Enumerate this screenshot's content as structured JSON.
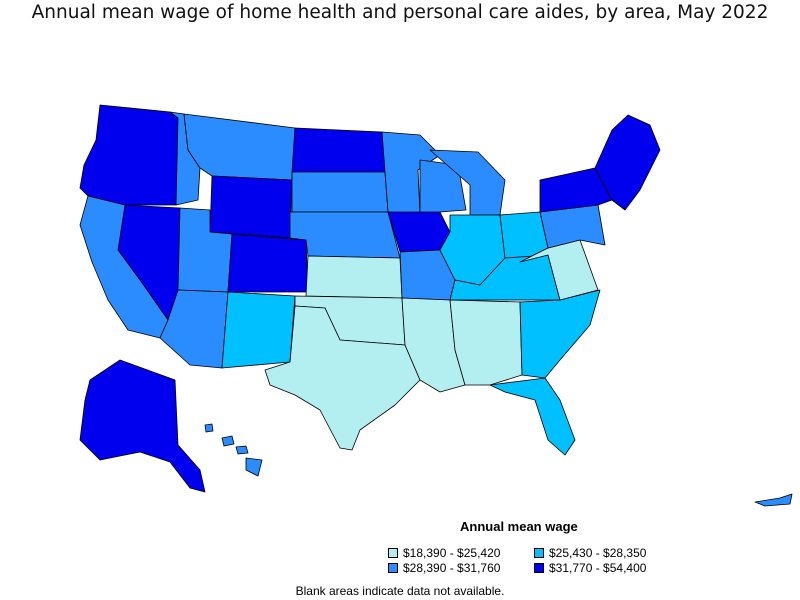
{
  "title": "Annual mean wage of home health and personal care aides, by area, May 2022",
  "legend": {
    "title": "Annual mean wage",
    "items": [
      {
        "label": "$18,390 - $25,420",
        "color": "#b3eef0"
      },
      {
        "label": "$25,430 - $28,350",
        "color": "#00c0ff"
      },
      {
        "label": "$28,390 - $31,760",
        "color": "#2a8cff"
      },
      {
        "label": "$31,770 - $54,400",
        "color": "#0000ee"
      }
    ]
  },
  "footnote": "Blank areas indicate data not available.",
  "colors": {
    "tier1": "#b3eef0",
    "tier2": "#00c0ff",
    "tier3": "#2a8cff",
    "tier4": "#0000ee",
    "border": "#000000"
  }
}
